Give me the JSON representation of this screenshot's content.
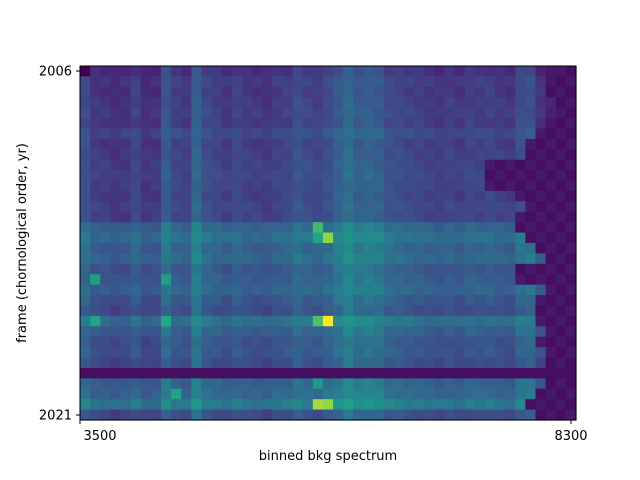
{
  "colors": {
    "background": "#ffffff",
    "axis": "#000000",
    "colormap": "viridis"
  },
  "chart_data": {
    "type": "heatmap",
    "title": "",
    "xlabel": "binned bkg spectrum",
    "ylabel": "frame (chornological order, yr)",
    "xlim": [
      3500,
      8300
    ],
    "ylim_labels": [
      "2006",
      "2021"
    ],
    "x_tick_labels": [
      "3500",
      "8300"
    ],
    "y_tick_labels": [
      "2006",
      "2021"
    ],
    "orientation": "first row (2006) at top, last row (2021) at bottom",
    "n_columns": 49,
    "n_rows": 34,
    "value_range": [
      0,
      1
    ],
    "column_profile": [
      0.34,
      0.27,
      0.26,
      0.24,
      0.25,
      0.3,
      0.24,
      0.25,
      0.38,
      0.3,
      0.28,
      0.42,
      0.33,
      0.3,
      0.27,
      0.31,
      0.28,
      0.27,
      0.26,
      0.29,
      0.3,
      0.35,
      0.32,
      0.3,
      0.34,
      0.4,
      0.46,
      0.4,
      0.42,
      0.4,
      0.34,
      0.33,
      0.31,
      0.3,
      0.28,
      0.27,
      0.29,
      0.27,
      0.3,
      0.29,
      0.3,
      0.28,
      0.27,
      0.35,
      0.36,
      0.26,
      0.2,
      0.16,
      0.13
    ],
    "row_profile": [
      0.22,
      0.3,
      0.28,
      0.3,
      0.32,
      0.3,
      0.4,
      0.32,
      0.34,
      0.36,
      0.38,
      0.36,
      0.34,
      0.38,
      0.36,
      0.62,
      0.72,
      0.6,
      0.66,
      0.52,
      0.56,
      0.62,
      0.5,
      0.44,
      0.72,
      0.58,
      0.48,
      0.5,
      0.42,
      0.05,
      0.6,
      0.66,
      0.8,
      0.42
    ],
    "right_edge_start_col": [
      47,
      46,
      46,
      47,
      47,
      46,
      45,
      44,
      44,
      40,
      40,
      40,
      43,
      44,
      43,
      43,
      44,
      45,
      46,
      43,
      43,
      46,
      45,
      45,
      45,
      46,
      45,
      46,
      46,
      49,
      46,
      45,
      44,
      45
    ],
    "hot_spots": [
      {
        "row": 15,
        "col": 23,
        "value": 0.8
      },
      {
        "row": 16,
        "col": 24,
        "value": 0.9
      },
      {
        "row": 16,
        "col": 23,
        "value": 0.72
      },
      {
        "row": 24,
        "col": 24,
        "value": 1.0
      },
      {
        "row": 24,
        "col": 23,
        "value": 0.82
      },
      {
        "row": 24,
        "col": 8,
        "value": 0.75
      },
      {
        "row": 20,
        "col": 8,
        "value": 0.7
      },
      {
        "row": 20,
        "col": 1,
        "value": 0.7
      },
      {
        "row": 24,
        "col": 1,
        "value": 0.72
      },
      {
        "row": 32,
        "col": 23,
        "value": 0.92
      },
      {
        "row": 32,
        "col": 24,
        "value": 0.9
      },
      {
        "row": 31,
        "col": 9,
        "value": 0.72
      },
      {
        "row": 30,
        "col": 23,
        "value": 0.66
      }
    ],
    "grid": false,
    "legend": "none"
  }
}
